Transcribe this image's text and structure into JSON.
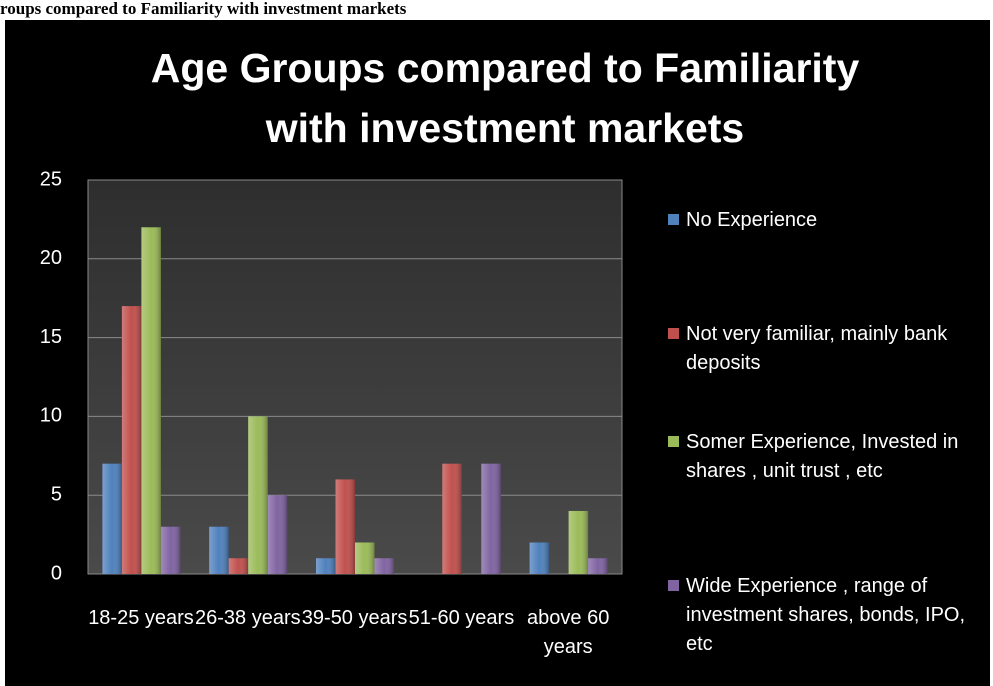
{
  "page_header": "roups compared to Familiarity with investment markets",
  "chart_data": {
    "type": "bar",
    "title": "Age Groups compared to Familiarity with investment markets",
    "categories": [
      "18-25 years",
      "26-38 years",
      "39-50 years",
      "51-60 years",
      "above 60 years"
    ],
    "series": [
      {
        "name": "No Experience",
        "color": "#4f81bd",
        "values": [
          7,
          3,
          1,
          0,
          2
        ]
      },
      {
        "name": "Not very familiar, mainly bank deposits",
        "color": "#c0504d",
        "values": [
          17,
          1,
          6,
          7,
          0
        ]
      },
      {
        "name": "Somer Experience, Invested in shares , unit trust , etc",
        "color": "#9bbb59",
        "values": [
          22,
          10,
          2,
          0,
          4
        ]
      },
      {
        "name": "Wide Experience , range of investment shares, bonds, IPO, etc",
        "color": "#8064a2",
        "values": [
          3,
          5,
          1,
          7,
          1
        ]
      }
    ],
    "ylim": [
      0,
      25
    ],
    "yticks": [
      0,
      5,
      10,
      15,
      20,
      25
    ],
    "grid": true,
    "legend": "right"
  }
}
